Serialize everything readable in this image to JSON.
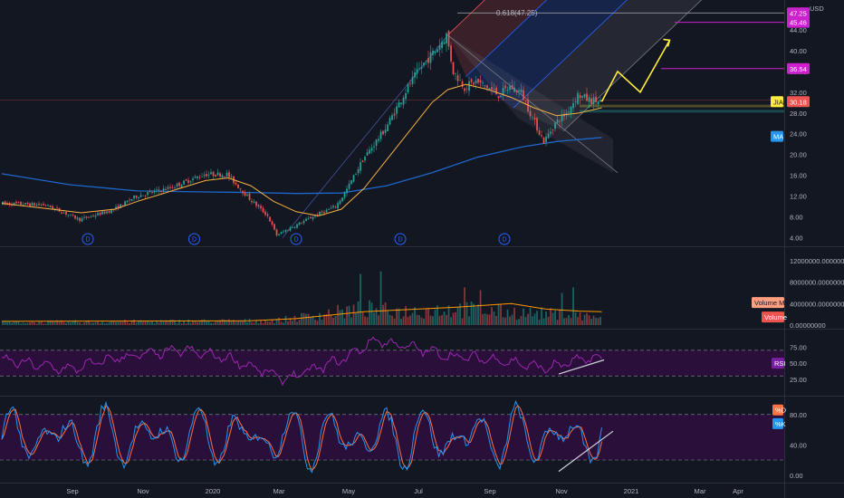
{
  "currency": "USD",
  "colors": {
    "background": "#131722",
    "up": "#26a69a",
    "down": "#ef5350",
    "ma_short": "#f5b041",
    "ma_long": "#1e66c9",
    "rsi": "#9c27b0",
    "stoch_k": "#2196f3",
    "stoch_d": "#ff7043",
    "pane_fill": "#2a0f3a",
    "projection": "#ffeb3b",
    "level_badge": "#cc22cc"
  },
  "x_labels": [
    "Sep",
    "Nov",
    "2020",
    "Mar",
    "May",
    "Jul",
    "Sep",
    "Nov",
    "2021",
    "Mar",
    "Apr"
  ],
  "dividend_marker": "D",
  "fib_label": "0.618(47.25)",
  "price_pane": {
    "ticks": [
      "44.00",
      "40.00",
      "36.00",
      "32.00",
      "28.00",
      "24.00",
      "20.00",
      "16.00",
      "12.00",
      "8.00",
      "4.00"
    ],
    "level_badges": [
      "47.25",
      "45.46",
      "36.54"
    ],
    "last_price": "30.18",
    "ticker_label": "JIA",
    "ma_label": "MA"
  },
  "volume_pane": {
    "ticks": [
      "12000000.00000000",
      "8000000.00000000",
      "4000000.00000000",
      "0.00000000"
    ],
    "labels": [
      "Volume MA",
      "Volume"
    ]
  },
  "rsi_pane": {
    "ticks": [
      "75.00",
      "50.00",
      "25.00"
    ],
    "label": "RSI"
  },
  "stoch_pane": {
    "ticks": [
      "80.00",
      "40.00",
      "0.00"
    ],
    "labels": [
      "%D",
      "%K"
    ]
  },
  "chart_data": [
    {
      "type": "candlestick",
      "ylim": [
        2,
        50
      ],
      "price_path": [
        [
          0,
          10.6
        ],
        [
          20,
          10.3
        ],
        [
          35,
          7.5
        ],
        [
          50,
          9.4
        ],
        [
          60,
          12
        ],
        [
          75,
          13.6
        ],
        [
          90,
          16.2
        ],
        [
          100,
          16.2
        ],
        [
          110,
          11.5
        ],
        [
          118,
          8.2
        ],
        [
          122,
          4.5
        ],
        [
          130,
          6.3
        ],
        [
          140,
          8.5
        ],
        [
          148,
          10
        ],
        [
          152,
          12.5
        ],
        [
          160,
          19
        ],
        [
          170,
          25
        ],
        [
          180,
          33
        ],
        [
          186,
          37
        ],
        [
          192,
          40
        ],
        [
          197,
          43
        ],
        [
          200,
          36
        ],
        [
          205,
          33
        ],
        [
          210,
          34
        ],
        [
          215,
          33
        ],
        [
          220,
          31.5
        ],
        [
          225,
          33
        ],
        [
          230,
          32
        ],
        [
          235,
          27
        ],
        [
          240,
          22.5
        ],
        [
          245,
          26
        ],
        [
          250,
          28
        ],
        [
          255,
          31.5
        ],
        [
          260,
          30.5
        ],
        [
          265,
          30.2
        ]
      ],
      "ma_short_path": [
        [
          0,
          10.6
        ],
        [
          20,
          9.6
        ],
        [
          35,
          8.8
        ],
        [
          50,
          9.5
        ],
        [
          60,
          11
        ],
        [
          75,
          13
        ],
        [
          90,
          15
        ],
        [
          100,
          15.5
        ],
        [
          110,
          14
        ],
        [
          120,
          11
        ],
        [
          130,
          9
        ],
        [
          140,
          8.2
        ],
        [
          150,
          9.5
        ],
        [
          160,
          13.5
        ],
        [
          170,
          19
        ],
        [
          180,
          24.5
        ],
        [
          190,
          30
        ],
        [
          197,
          32.5
        ],
        [
          205,
          33.5
        ],
        [
          215,
          32.5
        ],
        [
          225,
          31
        ],
        [
          235,
          29
        ],
        [
          245,
          27.5
        ],
        [
          255,
          28
        ],
        [
          265,
          29
        ]
      ],
      "ma_long_path": [
        [
          0,
          16.3
        ],
        [
          30,
          14.2
        ],
        [
          60,
          13
        ],
        [
          90,
          12.8
        ],
        [
          110,
          12.7
        ],
        [
          130,
          12.5
        ],
        [
          150,
          12.6
        ],
        [
          170,
          14
        ],
        [
          190,
          16.5
        ],
        [
          210,
          19.5
        ],
        [
          230,
          21.5
        ],
        [
          245,
          22.5
        ],
        [
          265,
          23.3
        ]
      ],
      "projection_path": [
        [
          265,
          30.2
        ],
        [
          272,
          36
        ],
        [
          282,
          32
        ],
        [
          295,
          42
        ]
      ],
      "dividend_x": [
        38,
        85,
        130,
        176,
        222
      ]
    },
    {
      "type": "bar",
      "series": [
        {
          "name": "Volume"
        },
        {
          "name": "Volume MA"
        }
      ],
      "ylim": [
        0,
        14000000
      ],
      "volume_env": [
        [
          0,
          500000
        ],
        [
          120,
          800000
        ],
        [
          150,
          2500000
        ],
        [
          160,
          3000000
        ],
        [
          175,
          2500000
        ],
        [
          200,
          3000000
        ],
        [
          220,
          2500000
        ],
        [
          250,
          1800000
        ],
        [
          265,
          1500000
        ]
      ],
      "ma_env": [
        [
          0,
          700000
        ],
        [
          110,
          800000
        ],
        [
          130,
          1200000
        ],
        [
          160,
          2500000
        ],
        [
          200,
          3300000
        ],
        [
          225,
          4000000
        ],
        [
          240,
          3000000
        ],
        [
          255,
          2600000
        ],
        [
          265,
          2500000
        ]
      ],
      "spikes": [
        [
          158,
          9500000
        ],
        [
          167,
          10000000
        ],
        [
          204,
          7000000
        ],
        [
          211,
          6500000
        ],
        [
          247,
          6000000
        ],
        [
          252,
          7000000
        ]
      ]
    },
    {
      "type": "line",
      "series": [
        {
          "name": "RSI"
        }
      ],
      "ylim": [
        5,
        98
      ],
      "levels": [
        70,
        30
      ],
      "rsi_env": [
        [
          0,
          55
        ],
        [
          30,
          40
        ],
        [
          50,
          58
        ],
        [
          80,
          70
        ],
        [
          100,
          58
        ],
        [
          125,
          25
        ],
        [
          150,
          55
        ],
        [
          165,
          86
        ],
        [
          180,
          75
        ],
        [
          200,
          60
        ],
        [
          220,
          55
        ],
        [
          240,
          42
        ],
        [
          260,
          58
        ],
        [
          265,
          55
        ]
      ],
      "trend": [
        [
          246,
          33
        ],
        [
          266,
          55
        ]
      ]
    },
    {
      "type": "line",
      "series": [
        {
          "name": "%K"
        },
        {
          "name": "%D"
        }
      ],
      "ylim": [
        -5,
        100
      ],
      "levels": [
        80,
        20
      ],
      "trend": [
        [
          246,
          5
        ],
        [
          270,
          58
        ]
      ]
    }
  ]
}
